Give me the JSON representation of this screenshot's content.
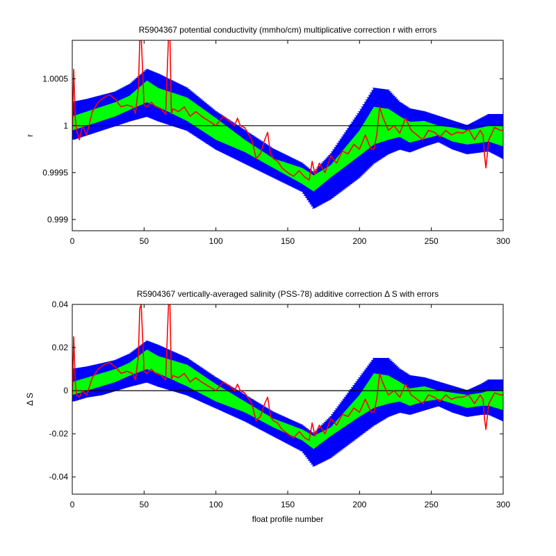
{
  "colors": {
    "outer_band": "#0000ff",
    "inner_band": "#00ff00",
    "correction_line": "#ff0000",
    "zero_line": "#000000",
    "axes": "#000000",
    "background": "#ffffff"
  },
  "chart_data": [
    {
      "type": "area",
      "title": "R5904367 potential conductivity (mmho/cm) multiplicative correction r with errors",
      "xlabel": "",
      "ylabel": "r",
      "xlim": [
        0,
        300
      ],
      "ylim": [
        0.99888,
        1.00091
      ],
      "xticks": [
        0,
        50,
        100,
        150,
        200,
        250,
        300
      ],
      "xtick_labels": [
        "0",
        "50",
        "100",
        "150",
        "200",
        "250",
        "300"
      ],
      "yticks": [
        0.999,
        0.9995,
        1,
        1.0005
      ],
      "ytick_labels": [
        "0.999",
        "0.9995",
        "1",
        "1.0005"
      ],
      "reference_line": 1,
      "series": [
        {
          "kind": "band",
          "color": "outer_band",
          "x": [
            0,
            10,
            20,
            30,
            40,
            52,
            60,
            80,
            100,
            120,
            140,
            160,
            168,
            180,
            200,
            210,
            220,
            228,
            235,
            245,
            255,
            265,
            275,
            285,
            290,
            300
          ],
          "lower": [
            0.99985,
            0.9999,
            0.99995,
            1.0,
            1.00005,
            1.0001,
            1.00005,
            0.99995,
            0.99975,
            0.9996,
            0.99945,
            0.9993,
            0.99912,
            0.99922,
            0.99945,
            0.9996,
            0.9997,
            0.99975,
            0.99972,
            0.99978,
            0.99983,
            0.99975,
            0.9997,
            0.99972,
            0.99973,
            0.99965
          ],
          "upper": [
            1.00025,
            1.00028,
            1.00032,
            1.00036,
            1.00044,
            1.0006,
            1.00055,
            1.0004,
            1.00015,
            0.99995,
            0.99975,
            0.9996,
            0.9995,
            0.9997,
            1.00015,
            1.0004,
            1.00038,
            1.00025,
            1.00018,
            1.00015,
            1.0001,
            1.00005,
            1.0,
            1.00008,
            1.00012,
            1.00012
          ]
        },
        {
          "kind": "band",
          "color": "inner_band",
          "x": [
            0,
            10,
            20,
            30,
            40,
            52,
            60,
            80,
            100,
            120,
            140,
            160,
            168,
            180,
            200,
            210,
            220,
            228,
            235,
            245,
            255,
            265,
            275,
            285,
            290,
            300
          ],
          "lower": [
            0.99995,
            1.0,
            1.00005,
            1.0001,
            1.00017,
            1.00025,
            1.0002,
            1.00005,
            0.99985,
            0.99972,
            0.99955,
            0.99938,
            0.9993,
            0.99945,
            0.99968,
            0.9998,
            0.99985,
            0.99988,
            0.99982,
            0.99986,
            0.9999,
            0.99983,
            0.9998,
            0.99982,
            0.99983,
            0.99978
          ],
          "upper": [
            1.0001,
            1.00015,
            1.0002,
            1.00025,
            1.00032,
            1.00048,
            1.0004,
            1.0003,
            1.00008,
            0.99985,
            0.99965,
            0.99955,
            0.99947,
            0.99958,
            0.99995,
            1.0002,
            1.00018,
            1.0001,
            1.00004,
            1.00005,
            1.0,
            0.99998,
            0.99995,
            0.99998,
            1.0,
            1.0
          ]
        },
        {
          "kind": "line",
          "color": "correction_line",
          "x": [
            0,
            1,
            2,
            3,
            5,
            7,
            10,
            14,
            18,
            22,
            26,
            30,
            34,
            38,
            42,
            44,
            46,
            47,
            48,
            50,
            52,
            55,
            58,
            62,
            65,
            67,
            68,
            69,
            70,
            74,
            78,
            82,
            86,
            90,
            95,
            100,
            105,
            110,
            113,
            115,
            117,
            120,
            125,
            128,
            131,
            134,
            136,
            138,
            140,
            143,
            146,
            150,
            154,
            158,
            162,
            165,
            167,
            169,
            172,
            176,
            180,
            184,
            188,
            192,
            196,
            200,
            204,
            208,
            210,
            212,
            214,
            216,
            220,
            224,
            228,
            232,
            236,
            240,
            244,
            248,
            252,
            256,
            260,
            264,
            268,
            272,
            276,
            280,
            284,
            286,
            287,
            288,
            290,
            294,
            298,
            300
          ],
          "y": [
            0.99995,
            1.0006,
            1.0001,
            0.99995,
            0.99985,
            1.0,
            0.9999,
            1.00015,
            1.00025,
            1.0003,
            1.00033,
            1.00028,
            1.0002,
            1.00022,
            1.0002,
            1.00013,
            1.0004,
            1.0009,
            1.00095,
            1.00022,
            1.0002,
            1.00025,
            1.0002,
            1.00018,
            1.00012,
            1.00095,
            1.00095,
            1.00012,
            1.00018,
            1.00015,
            1.0002,
            1.0001,
            1.00015,
            1.0001,
            1.00005,
            1.0,
            1.0001,
            1.00004,
            1.0,
            1.00008,
            1.0,
            0.99998,
            0.99985,
            0.99965,
            0.9997,
            0.99985,
            0.99993,
            0.9997,
            0.99965,
            0.99962,
            0.99955,
            0.9995,
            0.99946,
            0.99952,
            0.99945,
            0.99942,
            0.99962,
            0.99948,
            0.9996,
            0.9995,
            0.99968,
            0.9996,
            0.99973,
            0.9997,
            0.9998,
            0.99975,
            0.9999,
            0.99975,
            0.99975,
            0.9999,
            1.0002,
            1.0001,
            0.99995,
            1.0,
            0.99992,
            1.00008,
            0.99995,
            0.9999,
            0.99985,
            0.99995,
            0.99993,
            0.99988,
            0.99995,
            0.9999,
            0.99993,
            0.99992,
            0.99996,
            0.99985,
            0.99995,
            0.9999,
            0.99968,
            0.99955,
            0.99985,
            0.99998,
            0.99995,
            0.99995
          ]
        }
      ]
    },
    {
      "type": "area",
      "title": "R5904367 vertically-averaged salinity (PSS-78) additive correction Δ S with errors",
      "xlabel": "float profile number",
      "ylabel": "Δ S",
      "xlim": [
        0,
        300
      ],
      "ylim": [
        -0.048,
        0.04
      ],
      "xticks": [
        0,
        50,
        100,
        150,
        200,
        250,
        300
      ],
      "xtick_labels": [
        "0",
        "50",
        "100",
        "150",
        "200",
        "250",
        "300"
      ],
      "yticks": [
        -0.04,
        -0.02,
        0,
        0.02,
        0.04
      ],
      "ytick_labels": [
        "-0.04",
        "-0.02",
        "0",
        "0.02",
        "0.04"
      ],
      "reference_line": 0,
      "series": [
        {
          "kind": "band",
          "color": "outer_band",
          "x": [
            0,
            10,
            20,
            30,
            40,
            52,
            60,
            80,
            100,
            120,
            140,
            160,
            168,
            180,
            200,
            210,
            220,
            228,
            235,
            245,
            255,
            265,
            275,
            285,
            290,
            300
          ],
          "lower": [
            -0.005,
            -0.003,
            -0.002,
            0.0,
            0.002,
            0.004,
            0.002,
            -0.002,
            -0.008,
            -0.014,
            -0.021,
            -0.028,
            -0.035,
            -0.031,
            -0.021,
            -0.016,
            -0.012,
            -0.01,
            -0.011,
            -0.009,
            -0.007,
            -0.01,
            -0.012,
            -0.011,
            -0.011,
            -0.014
          ],
          "upper": [
            0.01,
            0.011,
            0.0125,
            0.014,
            0.017,
            0.023,
            0.021,
            0.015,
            0.006,
            -0.002,
            -0.01,
            -0.016,
            -0.02,
            -0.012,
            0.006,
            0.015,
            0.015,
            0.01,
            0.007,
            0.006,
            0.004,
            0.002,
            0.0,
            0.003,
            0.005,
            0.005
          ]
        },
        {
          "kind": "band",
          "color": "inner_band",
          "x": [
            0,
            10,
            20,
            30,
            40,
            52,
            60,
            80,
            100,
            120,
            140,
            160,
            168,
            180,
            200,
            210,
            220,
            228,
            235,
            245,
            255,
            265,
            275,
            285,
            290,
            300
          ],
          "lower": [
            -0.002,
            0.0,
            0.002,
            0.004,
            0.007,
            0.01,
            0.008,
            0.002,
            -0.005,
            -0.01,
            -0.017,
            -0.023,
            -0.027,
            -0.021,
            -0.012,
            -0.008,
            -0.006,
            -0.005,
            -0.007,
            -0.005,
            -0.004,
            -0.006,
            -0.008,
            -0.007,
            -0.007,
            -0.009
          ],
          "upper": [
            0.004,
            0.006,
            0.008,
            0.01,
            0.013,
            0.019,
            0.016,
            0.012,
            0.003,
            -0.005,
            -0.013,
            -0.018,
            -0.021,
            -0.017,
            -0.002,
            0.008,
            0.007,
            0.004,
            0.001,
            0.002,
            0.0,
            -0.001,
            -0.002,
            -0.001,
            0.0,
            0.0
          ]
        },
        {
          "kind": "line",
          "color": "correction_line",
          "x": [
            0,
            1,
            2,
            3,
            5,
            7,
            10,
            14,
            18,
            22,
            26,
            30,
            34,
            38,
            42,
            44,
            46,
            47,
            48,
            50,
            52,
            55,
            58,
            62,
            65,
            67,
            68,
            69,
            70,
            74,
            78,
            82,
            86,
            90,
            95,
            100,
            105,
            110,
            113,
            115,
            117,
            120,
            125,
            128,
            131,
            134,
            136,
            138,
            140,
            143,
            146,
            150,
            154,
            158,
            162,
            165,
            167,
            169,
            172,
            176,
            180,
            184,
            188,
            192,
            196,
            200,
            204,
            208,
            210,
            212,
            214,
            216,
            220,
            224,
            228,
            232,
            236,
            240,
            244,
            248,
            252,
            256,
            260,
            264,
            268,
            272,
            276,
            280,
            284,
            286,
            287,
            288,
            290,
            294,
            298,
            300
          ],
          "y": [
            -0.002,
            0.025,
            0.005,
            -0.002,
            -0.003,
            0.0,
            -0.002,
            0.006,
            0.01,
            0.012,
            0.013,
            0.011,
            0.008,
            0.009,
            0.008,
            0.005,
            0.016,
            0.038,
            0.04,
            0.009,
            0.008,
            0.01,
            0.008,
            0.007,
            0.005,
            0.04,
            0.04,
            0.005,
            0.007,
            0.006,
            0.008,
            0.004,
            0.006,
            0.004,
            0.002,
            0.0,
            0.004,
            0.002,
            0.0,
            0.003,
            0.0,
            -0.001,
            -0.006,
            -0.014,
            -0.012,
            -0.006,
            -0.003,
            -0.012,
            -0.014,
            -0.015,
            -0.018,
            -0.02,
            -0.022,
            -0.019,
            -0.022,
            -0.023,
            -0.015,
            -0.021,
            -0.016,
            -0.02,
            -0.013,
            -0.016,
            -0.011,
            -0.012,
            -0.008,
            -0.01,
            -0.004,
            -0.01,
            -0.01,
            -0.004,
            0.008,
            0.004,
            -0.002,
            0.0,
            -0.003,
            0.003,
            -0.002,
            -0.004,
            -0.006,
            -0.002,
            -0.003,
            -0.005,
            -0.002,
            -0.004,
            -0.003,
            -0.003,
            -0.002,
            -0.006,
            -0.002,
            -0.004,
            -0.013,
            -0.018,
            -0.006,
            -0.001,
            -0.002,
            -0.002
          ]
        }
      ]
    }
  ]
}
